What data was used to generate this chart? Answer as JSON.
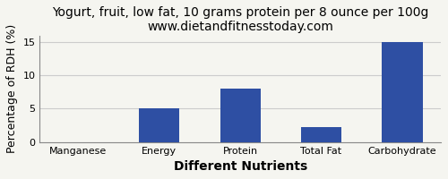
{
  "title": "Yogurt, fruit, low fat, 10 grams protein per 8 ounce per 100g",
  "subtitle": "www.dietandfitnesstoday.com",
  "categories": [
    "Manganese",
    "Energy",
    "Protein",
    "Total Fat",
    "Carbohydrate"
  ],
  "values": [
    0,
    5,
    8,
    2.2,
    15
  ],
  "bar_color": "#2e4fa3",
  "xlabel": "Different Nutrients",
  "ylabel": "Percentage of RDH (%)",
  "ylim": [
    0,
    16
  ],
  "yticks": [
    0,
    5,
    10,
    15
  ],
  "title_fontsize": 10,
  "subtitle_fontsize": 9,
  "xlabel_fontsize": 10,
  "ylabel_fontsize": 9,
  "tick_fontsize": 8,
  "background_color": "#f5f5f0",
  "grid_color": "#cccccc"
}
